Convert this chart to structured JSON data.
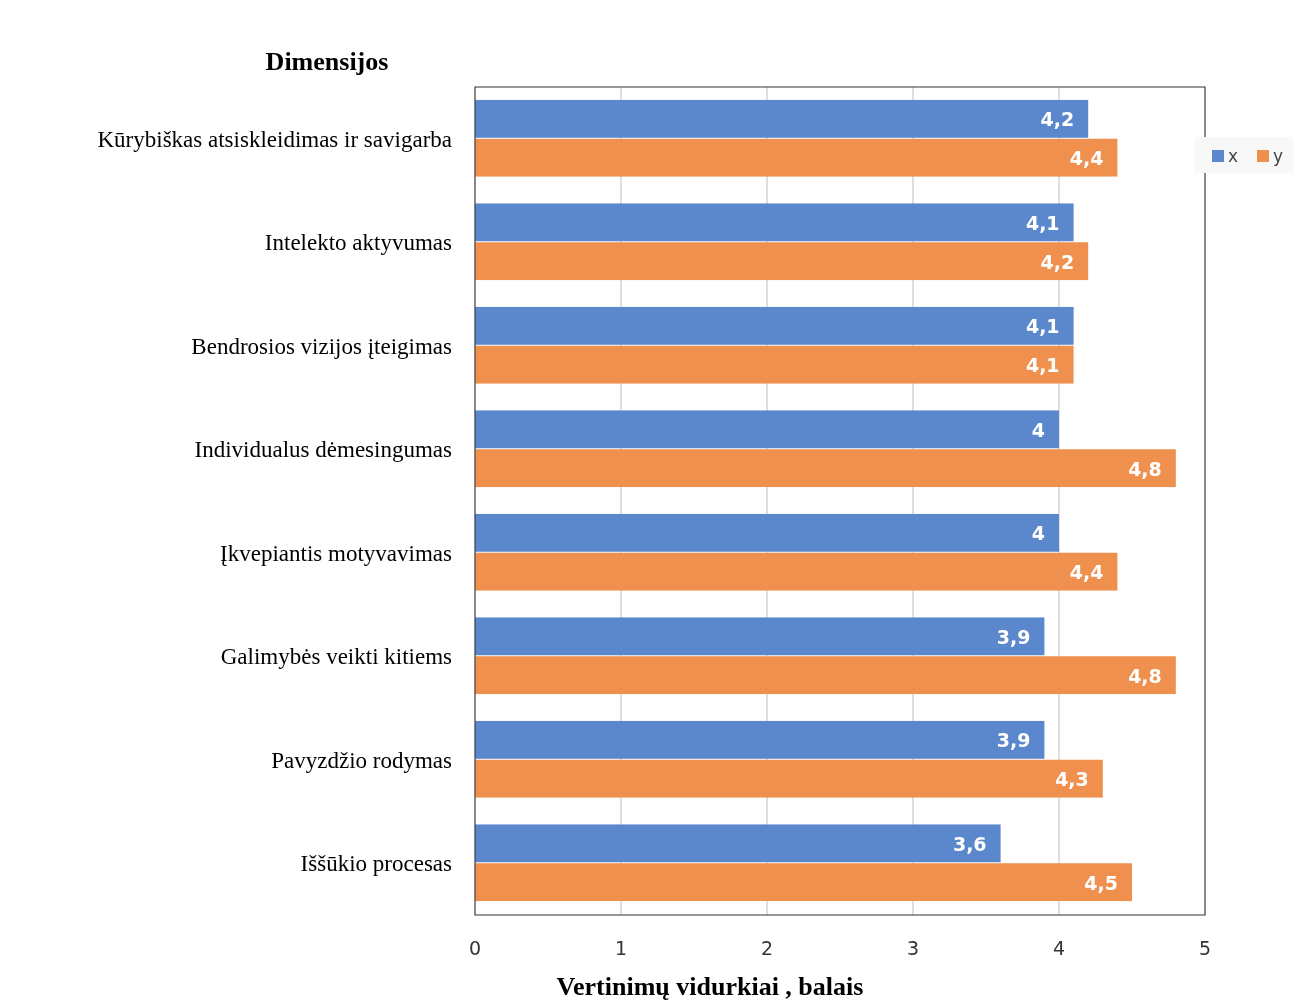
{
  "chart_data": {
    "type": "bar",
    "orientation": "horizontal",
    "ylabel": "Dimensijos",
    "xlabel": "Vertinimų vidurkiai , balais",
    "categories": [
      "Kūrybiškas atsiskleidimas ir savigarba",
      "Intelekto aktyvumas",
      "Bendrosios vizijos įteigimas",
      "Individualus dėmesingumas",
      "Įkvepiantis motyvavimas",
      "Galimybės veikti kitiems",
      "Pavyzdžio rodymas",
      "Iššūkio procesas"
    ],
    "series": [
      {
        "name": "x",
        "color": "#5b87cc",
        "values": [
          4.2,
          4.1,
          4.1,
          4,
          4,
          3.9,
          3.9,
          3.6
        ],
        "value_labels": [
          "4,2",
          "4,1",
          "4,1",
          "4",
          "4",
          "3,9",
          "3,9",
          "3,6"
        ]
      },
      {
        "name": "y",
        "color": "#f0904f",
        "values": [
          4.4,
          4.2,
          4.1,
          4.8,
          4.4,
          4.8,
          4.3,
          4.5
        ],
        "value_labels": [
          "4,4",
          "4,2",
          "4,1",
          "4,8",
          "4,4",
          "4,8",
          "4,3",
          "4,5"
        ]
      }
    ],
    "xlim": [
      0,
      5
    ],
    "xticks": [
      0,
      1,
      2,
      3,
      4,
      5
    ],
    "grid": "x",
    "legend": "top right"
  }
}
